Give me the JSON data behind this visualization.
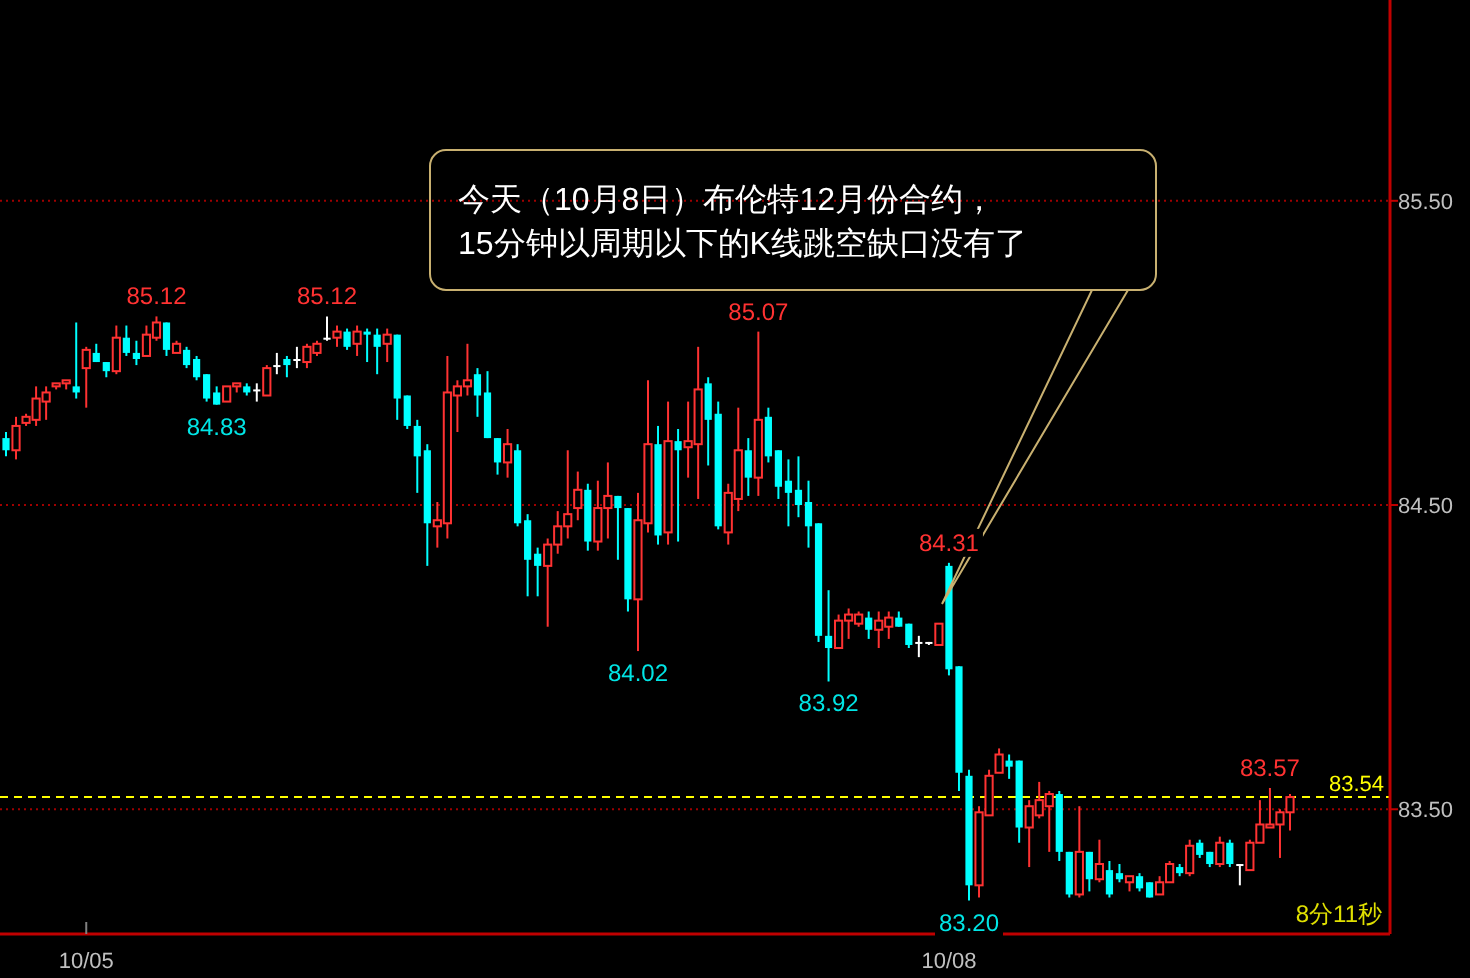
{
  "chart_data": {
    "type": "candlestick",
    "categories": [
      null,
      null,
      null,
      null,
      null,
      null,
      null,
      null,
      "10/05",
      null,
      null,
      null,
      null,
      null,
      null,
      null,
      null,
      null,
      null,
      null,
      null,
      null,
      null,
      null,
      null,
      null,
      null,
      null,
      null,
      null,
      null,
      null,
      null,
      null,
      null,
      null,
      null,
      null,
      null,
      null,
      null,
      null,
      null,
      null,
      null,
      null,
      null,
      null,
      null,
      null,
      null,
      null,
      null,
      null,
      null,
      null,
      null,
      null,
      null,
      null,
      null,
      null,
      null,
      null,
      null,
      null,
      null,
      null,
      null,
      null,
      null,
      null,
      null,
      null,
      null,
      null,
      null,
      null,
      null,
      null,
      null,
      null,
      null,
      null,
      null,
      null,
      null,
      null,
      null,
      null,
      null,
      null,
      null,
      null,
      "10/08",
      null,
      null,
      null,
      null,
      null,
      null,
      null,
      null,
      null,
      null,
      null,
      null,
      null,
      null,
      null,
      null,
      null,
      null,
      null,
      null,
      null,
      null,
      null,
      null,
      null,
      null,
      null,
      null,
      null,
      null,
      null,
      null,
      null,
      null
    ],
    "ohlc": [
      [
        84.72,
        84.74,
        84.66,
        84.68
      ],
      [
        84.68,
        84.79,
        84.65,
        84.76
      ],
      [
        84.77,
        84.8,
        84.76,
        84.79
      ],
      [
        84.78,
        84.89,
        84.76,
        84.85
      ],
      [
        84.84,
        84.89,
        84.78,
        84.87
      ],
      [
        84.89,
        84.9,
        84.88,
        84.9
      ],
      [
        84.9,
        84.91,
        84.88,
        84.91
      ],
      [
        84.89,
        85.1,
        84.85,
        84.87
      ],
      [
        84.95,
        85.02,
        84.82,
        85.01
      ],
      [
        85.0,
        85.03,
        84.97,
        84.97
      ],
      [
        84.97,
        84.97,
        84.92,
        84.94
      ],
      [
        84.94,
        85.09,
        84.93,
        85.05
      ],
      [
        85.05,
        85.09,
        84.99,
        85.0
      ],
      [
        85.0,
        85.04,
        84.96,
        84.98
      ],
      [
        84.99,
        85.09,
        84.99,
        85.06
      ],
      [
        85.05,
        85.12,
        85.04,
        85.1
      ],
      [
        85.1,
        85.1,
        84.99,
        85.01
      ],
      [
        85.0,
        85.04,
        85.0,
        85.03
      ],
      [
        85.01,
        85.02,
        84.95,
        84.96
      ],
      [
        84.98,
        84.99,
        84.91,
        84.92
      ],
      [
        84.93,
        84.93,
        84.84,
        84.85
      ],
      [
        84.87,
        84.89,
        84.83,
        84.83
      ],
      [
        84.84,
        84.89,
        84.84,
        84.89
      ],
      [
        84.89,
        84.9,
        84.87,
        84.9
      ],
      [
        84.89,
        84.9,
        84.86,
        84.87
      ],
      [
        84.88,
        84.9,
        84.84,
        84.88
      ],
      [
        84.86,
        84.96,
        84.86,
        84.95
      ],
      [
        84.96,
        85.0,
        84.93,
        84.96
      ],
      [
        84.98,
        84.99,
        84.92,
        84.96
      ],
      [
        84.98,
        85.02,
        84.95,
        84.98
      ],
      [
        84.97,
        85.03,
        84.95,
        85.02
      ],
      [
        85.0,
        85.04,
        84.99,
        85.03
      ],
      [
        85.05,
        85.12,
        85.04,
        85.05
      ],
      [
        85.05,
        85.09,
        85.02,
        85.07
      ],
      [
        85.07,
        85.08,
        85.01,
        85.02
      ],
      [
        85.03,
        85.09,
        84.99,
        85.07
      ],
      [
        85.07,
        85.08,
        84.97,
        85.06
      ],
      [
        85.06,
        85.08,
        84.93,
        85.02
      ],
      [
        85.03,
        85.08,
        84.97,
        85.06
      ],
      [
        85.06,
        85.06,
        84.78,
        84.85
      ],
      [
        84.86,
        84.86,
        84.75,
        84.76
      ],
      [
        84.76,
        84.78,
        84.54,
        84.66
      ],
      [
        84.68,
        84.7,
        84.3,
        84.44
      ],
      [
        84.43,
        84.51,
        84.36,
        84.45
      ],
      [
        84.44,
        84.99,
        84.39,
        84.87
      ],
      [
        84.86,
        84.91,
        84.74,
        84.89
      ],
      [
        84.89,
        85.03,
        84.86,
        84.91
      ],
      [
        84.93,
        84.95,
        84.79,
        84.86
      ],
      [
        84.87,
        84.94,
        84.72,
        84.72
      ],
      [
        84.72,
        84.72,
        84.6,
        84.64
      ],
      [
        84.64,
        84.75,
        84.59,
        84.7
      ],
      [
        84.68,
        84.7,
        84.43,
        84.44
      ],
      [
        84.45,
        84.47,
        84.2,
        84.32
      ],
      [
        84.34,
        84.36,
        84.2,
        84.3
      ],
      [
        84.3,
        84.39,
        84.1,
        84.37
      ],
      [
        84.37,
        84.48,
        84.34,
        84.43
      ],
      [
        84.43,
        84.68,
        84.39,
        84.47
      ],
      [
        84.49,
        84.61,
        84.45,
        84.55
      ],
      [
        84.55,
        84.57,
        84.35,
        84.38
      ],
      [
        84.38,
        84.58,
        84.35,
        84.49
      ],
      [
        84.49,
        84.64,
        84.39,
        84.53
      ],
      [
        84.53,
        84.53,
        84.32,
        84.49
      ],
      [
        84.49,
        84.49,
        84.15,
        84.19
      ],
      [
        84.19,
        84.54,
        84.02,
        84.45
      ],
      [
        84.44,
        84.91,
        84.41,
        84.7
      ],
      [
        84.7,
        84.76,
        84.37,
        84.4
      ],
      [
        84.41,
        84.84,
        84.37,
        84.71
      ],
      [
        84.71,
        84.75,
        84.38,
        84.68
      ],
      [
        84.69,
        84.84,
        84.59,
        84.71
      ],
      [
        84.7,
        85.02,
        84.52,
        84.88
      ],
      [
        84.9,
        84.92,
        84.63,
        84.78
      ],
      [
        84.8,
        84.84,
        84.42,
        84.43
      ],
      [
        84.41,
        84.57,
        84.37,
        84.54
      ],
      [
        84.52,
        84.82,
        84.48,
        84.68
      ],
      [
        84.68,
        84.72,
        84.53,
        84.59
      ],
      [
        84.59,
        85.07,
        84.53,
        84.78
      ],
      [
        84.79,
        84.82,
        84.64,
        84.66
      ],
      [
        84.68,
        84.68,
        84.52,
        84.56
      ],
      [
        84.58,
        84.65,
        84.43,
        84.54
      ],
      [
        84.55,
        84.66,
        84.46,
        84.5
      ],
      [
        84.51,
        84.58,
        84.36,
        84.43
      ],
      [
        84.44,
        84.44,
        84.05,
        84.07
      ],
      [
        84.07,
        84.22,
        83.92,
        84.03
      ],
      [
        84.03,
        84.14,
        84.03,
        84.12
      ],
      [
        84.12,
        84.16,
        84.06,
        84.14
      ],
      [
        84.11,
        84.15,
        84.1,
        84.14
      ],
      [
        84.13,
        84.15,
        84.06,
        84.09
      ],
      [
        84.09,
        84.15,
        84.03,
        84.12
      ],
      [
        84.1,
        84.15,
        84.06,
        84.13
      ],
      [
        84.13,
        84.15,
        84.1,
        84.1
      ],
      [
        84.11,
        84.11,
        84.03,
        84.04
      ],
      [
        84.05,
        84.07,
        84.0,
        84.05
      ],
      [
        84.05,
        84.05,
        84.04,
        84.05
      ],
      [
        84.04,
        84.11,
        84.04,
        84.11
      ],
      [
        84.3,
        84.31,
        83.94,
        83.96
      ],
      [
        83.97,
        83.97,
        83.56,
        83.62
      ],
      [
        83.61,
        83.63,
        83.2,
        83.25
      ],
      [
        83.25,
        83.51,
        83.21,
        83.49
      ],
      [
        83.48,
        83.63,
        83.48,
        83.61
      ],
      [
        83.62,
        83.7,
        83.62,
        83.68
      ],
      [
        83.66,
        83.68,
        83.6,
        83.64
      ],
      [
        83.66,
        83.66,
        83.39,
        83.44
      ],
      [
        83.44,
        83.53,
        83.31,
        83.51
      ],
      [
        83.48,
        83.59,
        83.47,
        83.53
      ],
      [
        83.51,
        83.56,
        83.36,
        83.55
      ],
      [
        83.55,
        83.56,
        83.33,
        83.36
      ],
      [
        83.36,
        83.36,
        83.21,
        83.22
      ],
      [
        83.22,
        83.51,
        83.21,
        83.36
      ],
      [
        83.36,
        83.36,
        83.23,
        83.27
      ],
      [
        83.27,
        83.4,
        83.26,
        83.32
      ],
      [
        83.3,
        83.33,
        83.21,
        83.22
      ],
      [
        83.29,
        83.32,
        83.26,
        83.27
      ],
      [
        83.26,
        83.28,
        83.23,
        83.28
      ],
      [
        83.28,
        83.29,
        83.23,
        83.24
      ],
      [
        83.26,
        83.26,
        83.21,
        83.21
      ],
      [
        83.22,
        83.28,
        83.22,
        83.26
      ],
      [
        83.26,
        83.33,
        83.26,
        83.32
      ],
      [
        83.31,
        83.32,
        83.28,
        83.29
      ],
      [
        83.29,
        83.4,
        83.28,
        83.38
      ],
      [
        83.39,
        83.4,
        83.34,
        83.35
      ],
      [
        83.36,
        83.36,
        83.31,
        83.32
      ],
      [
        83.32,
        83.41,
        83.31,
        83.39
      ],
      [
        83.39,
        83.4,
        83.31,
        83.32
      ],
      [
        83.32,
        83.32,
        83.25,
        83.32
      ],
      [
        83.3,
        83.4,
        83.3,
        83.39
      ],
      [
        83.39,
        83.53,
        83.39,
        83.45
      ],
      [
        83.44,
        83.57,
        83.44,
        83.45
      ],
      [
        83.45,
        83.5,
        83.34,
        83.49
      ],
      [
        83.49,
        83.55,
        83.43,
        83.54
      ]
    ],
    "colors": [
      "#00ffff",
      "#ff3232",
      "#ff3232",
      "#ff3232",
      "#ff3232",
      "#ff3232",
      "#ff3232",
      "#00ffff",
      "#ff3232",
      "#00ffff",
      "#00ffff",
      "#ff3232",
      "#00ffff",
      "#00ffff",
      "#ff3232",
      "#ff3232",
      "#00ffff",
      "#ff3232",
      "#00ffff",
      "#00ffff",
      "#00ffff",
      "#00ffff",
      "#ff3232",
      "#ff3232",
      "#00ffff",
      "#ffffff",
      "#ff3232",
      "#ffffff",
      "#00ffff",
      "#ffffff",
      "#ff3232",
      "#ff3232",
      "#ffffff",
      "#ff3232",
      "#00ffff",
      "#ff3232",
      "#00ffff",
      "#00ffff",
      "#ff3232",
      "#00ffff",
      "#00ffff",
      "#00ffff",
      "#00ffff",
      "#ff3232",
      "#ff3232",
      "#ff3232",
      "#ff3232",
      "#00ffff",
      "#00ffff",
      "#00ffff",
      "#ff3232",
      "#00ffff",
      "#00ffff",
      "#00ffff",
      "#ff3232",
      "#ff3232",
      "#ff3232",
      "#ff3232",
      "#00ffff",
      "#ff3232",
      "#ff3232",
      "#00ffff",
      "#00ffff",
      "#ff3232",
      "#ff3232",
      "#00ffff",
      "#ff3232",
      "#00ffff",
      "#ff3232",
      "#ff3232",
      "#00ffff",
      "#00ffff",
      "#ff3232",
      "#ff3232",
      "#00ffff",
      "#ff3232",
      "#00ffff",
      "#00ffff",
      "#00ffff",
      "#00ffff",
      "#00ffff",
      "#00ffff",
      "#00ffff",
      "#ff3232",
      "#ff3232",
      "#ff3232",
      "#00ffff",
      "#ff3232",
      "#ff3232",
      "#00ffff",
      "#00ffff",
      "#ffffff",
      "#ffffff",
      "#ff3232",
      "#00ffff",
      "#00ffff",
      "#00ffff",
      "#ff3232",
      "#ff3232",
      "#ff3232",
      "#00ffff",
      "#00ffff",
      "#ff3232",
      "#ff3232",
      "#ff3232",
      "#00ffff",
      "#00ffff",
      "#ff3232",
      "#00ffff",
      "#ff3232",
      "#00ffff",
      "#00ffff",
      "#ff3232",
      "#00ffff",
      "#00ffff",
      "#ff3232",
      "#ff3232",
      "#00ffff",
      "#ff3232",
      "#00ffff",
      "#00ffff",
      "#ff3232",
      "#00ffff",
      "#ffffff",
      "#ff3232",
      "#ff3232",
      "#ff3232",
      "#ff3232",
      "#ff3232"
    ],
    "ylim": [
      83.09,
      86.16
    ],
    "yticks": [
      {
        "value": 85.5,
        "label": "85.50"
      },
      {
        "value": 84.5,
        "label": "84.50"
      },
      {
        "value": 83.5,
        "label": "83.50"
      }
    ],
    "grid": "y",
    "ref_lines": [
      {
        "axis": "y",
        "value": 83.54,
        "label": "83.54",
        "color": "#ffff00",
        "line_style": "dashed"
      }
    ],
    "annotations": [
      "今天（10月8日）布伦特12月份合约，\n15分钟以周期以下的K线跳空缺口没有了",
      {
        "text": "85.12",
        "y": 85.12
      },
      {
        "text": "85.12",
        "y": 85.12
      },
      {
        "text": "84.83",
        "y": 84.83
      },
      {
        "text": "85.07",
        "y": 85.07
      },
      {
        "text": "84.02",
        "y": 84.02
      },
      {
        "text": "84.31",
        "y": 84.31
      },
      {
        "text": "83.92",
        "y": 83.92
      },
      {
        "text": "83.20",
        "y": 83.2
      },
      {
        "text": "83.57",
        "y": 83.57
      },
      "8分11秒"
    ]
  }
}
